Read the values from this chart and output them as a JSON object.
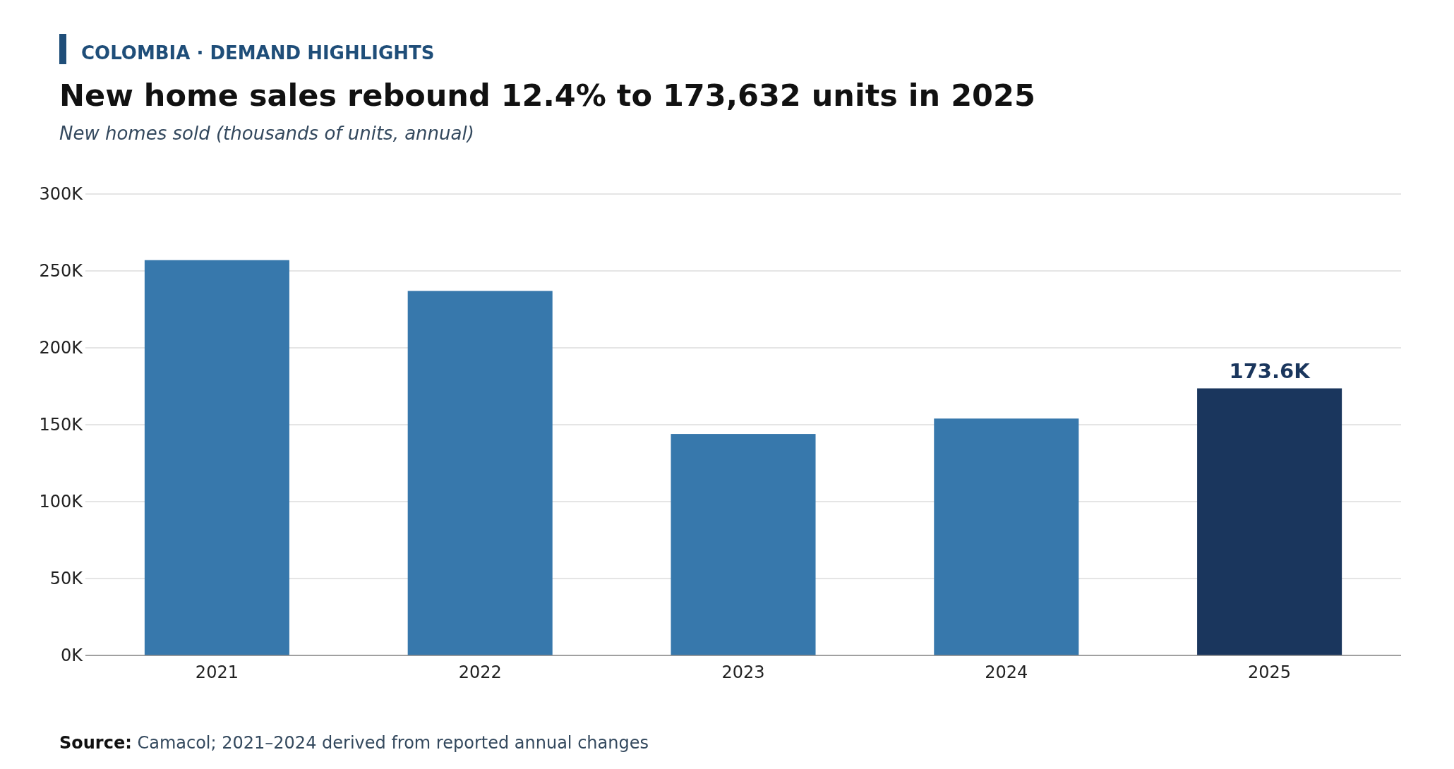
{
  "chart_data": {
    "type": "bar",
    "title": "New home sales rebound 12.4% to 173,632 units in 2025",
    "subtitle": "New homes sold (thousands of units, annual)",
    "annotations": [
      "COLOMBIA · DEMAND HIGHLIGHTS",
      "Source: Camacol; 2021–2024 derived from reported annual changes"
    ],
    "categories": [
      "2021",
      "2022",
      "2023",
      "2024",
      "2025"
    ],
    "values": [
      257000,
      237000,
      144000,
      154000,
      173632
    ],
    "colors": [
      "#3778ac",
      "#3778ac",
      "#3778ac",
      "#3778ac",
      "#1a365d"
    ],
    "value_labels": [
      null,
      null,
      null,
      null,
      "173.6K"
    ],
    "ylim": [
      0,
      300000
    ],
    "yticks": [
      {
        "value": 0,
        "label": "0K"
      },
      {
        "value": 50000,
        "label": "50K"
      },
      {
        "value": 100000,
        "label": "100K"
      },
      {
        "value": 150000,
        "label": "150K"
      },
      {
        "value": 200000,
        "label": "200K"
      },
      {
        "value": 250000,
        "label": "250K"
      },
      {
        "value": 300000,
        "label": "300K"
      }
    ],
    "grid": "y"
  }
}
